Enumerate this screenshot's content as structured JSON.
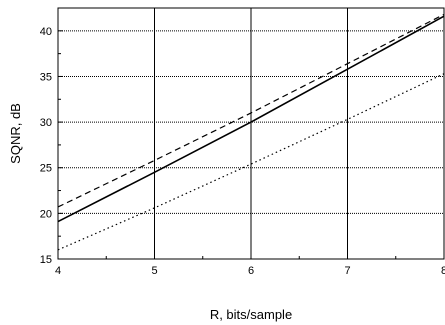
{
  "chart_data": {
    "type": "line",
    "title": "",
    "xlabel": "R, bits/sample",
    "ylabel": "SQNR, dB",
    "xlim": [
      4,
      8
    ],
    "ylim": [
      15,
      42.5
    ],
    "grid": true,
    "x_ticks": [
      "4",
      "5",
      "6",
      "7",
      "8"
    ],
    "y_ticks": [
      "15",
      "20",
      "25",
      "30",
      "35",
      "40"
    ],
    "series": [
      {
        "style": "dashed",
        "x": [
          4,
          5,
          6,
          7,
          8
        ],
        "y": [
          20.7,
          25.8,
          31.0,
          36.4,
          41.8
        ]
      },
      {
        "style": "solid",
        "x": [
          4,
          5,
          6,
          7,
          8
        ],
        "y": [
          19.1,
          24.5,
          30.0,
          35.8,
          41.6
        ]
      },
      {
        "style": "dotted",
        "x": [
          4,
          5,
          6,
          7,
          8
        ],
        "y": [
          16.0,
          20.6,
          25.4,
          30.3,
          35.3
        ]
      }
    ]
  }
}
